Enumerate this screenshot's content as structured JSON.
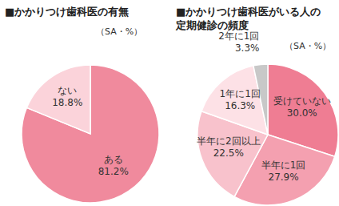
{
  "chart_data": [
    {
      "type": "pie",
      "title": "■かかりつけ歯科医の有無",
      "subtitle": "（SA・%）",
      "categories": [
        "ある",
        "ない"
      ],
      "values": [
        81.2,
        18.8
      ],
      "value_labels": [
        "81.2%",
        "18.8%"
      ],
      "colors": [
        "#f08a9d",
        "#fbd3da"
      ],
      "data_labels": true
    },
    {
      "type": "pie",
      "title": "■かかりつけ歯科医がいる人の定期健診の頻度",
      "subtitle": "（SA・%）",
      "categories": [
        "受けていない",
        "半年に1回",
        "半年に2回以上",
        "1年に1回",
        "2年に1回"
      ],
      "values": [
        30.0,
        27.9,
        22.5,
        16.3,
        3.3
      ],
      "value_labels": [
        "30.0%",
        "27.9%",
        "22.5%",
        "16.3%",
        "3.3%"
      ],
      "colors": [
        "#ef7d93",
        "#f4a0b0",
        "#f8c2cc",
        "#fde1e6",
        "#c8c8c8"
      ],
      "data_labels": true
    }
  ]
}
